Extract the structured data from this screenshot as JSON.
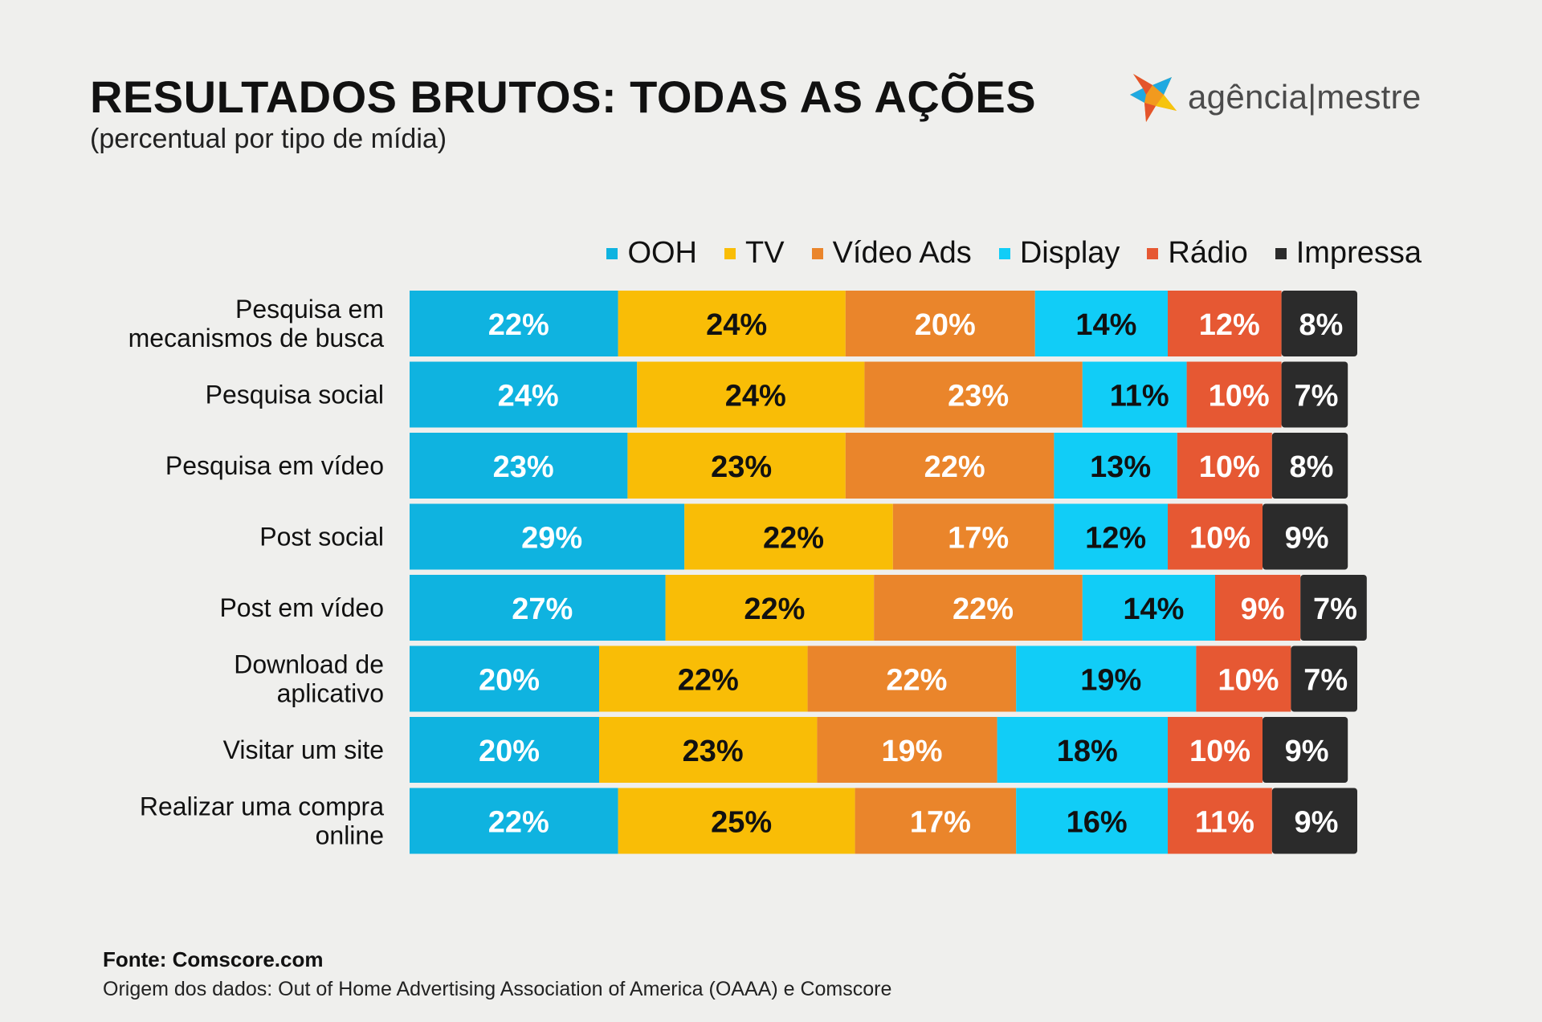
{
  "header": {
    "title": "RESULTADOS BRUTOS: TODAS AS AÇÕES",
    "subtitle": "(percentual por tipo de mídia)"
  },
  "logo": {
    "text": "agência|mestre",
    "icon": "star-burst-logo-icon"
  },
  "footer": {
    "source": "Fonte: Comscore.com",
    "origin": "Origem dos dados: Out of Home Advertising Association of America (OAAA) e Comscore"
  },
  "chart_data": {
    "type": "bar",
    "orientation": "horizontal",
    "stacked": true,
    "legend_position": "top-right",
    "grid": false,
    "categories": [
      "Pesquisa em mecanismos de busca",
      "Pesquisa social",
      "Pesquisa em vídeo",
      "Post social",
      "Post em vídeo",
      "Download de aplicativo",
      "Visitar um site",
      "Realizar uma compra online"
    ],
    "series": [
      {
        "name": "OOH",
        "color": "#0fb3e0",
        "label_color": "#ffffff",
        "values": [
          22,
          24,
          23,
          29,
          27,
          20,
          20,
          22
        ]
      },
      {
        "name": "TV",
        "color": "#f9bd06",
        "label_color": "#111111",
        "values": [
          24,
          24,
          23,
          22,
          22,
          22,
          23,
          25
        ]
      },
      {
        "name": "Vídeo Ads",
        "color": "#ea852b",
        "label_color": "#ffffff",
        "values": [
          20,
          23,
          22,
          17,
          22,
          22,
          19,
          17
        ]
      },
      {
        "name": "Display",
        "color": "#11cdf7",
        "label_color": "#111111",
        "values": [
          14,
          11,
          13,
          12,
          14,
          19,
          18,
          16
        ]
      },
      {
        "name": "Rádio",
        "color": "#e65833",
        "label_color": "#ffffff",
        "values": [
          12,
          10,
          10,
          10,
          9,
          10,
          10,
          11
        ]
      },
      {
        "name": "Impressa",
        "color": "#2b2b2b",
        "label_color": "#ffffff",
        "values": [
          8,
          7,
          8,
          9,
          7,
          7,
          9,
          9
        ]
      }
    ]
  }
}
